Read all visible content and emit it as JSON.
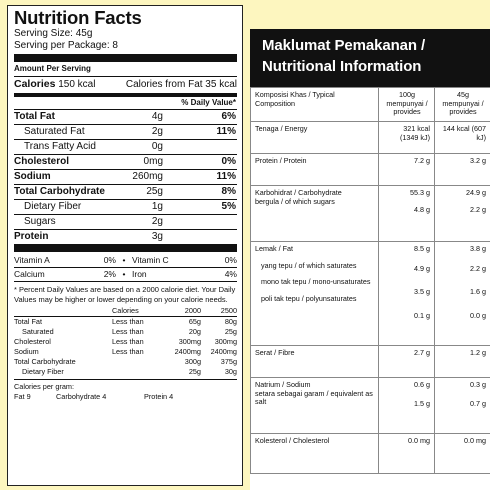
{
  "nutrition_facts": {
    "title": "Nutrition Facts",
    "serving_size": "Serving Size: 45g",
    "servings_per_package": "Serving per Package: 8",
    "amount_per_serving": "Amount Per Serving",
    "calories_label": "Calories",
    "calories_value": "150 kcal",
    "calories_from_fat": "Calories from Fat  35 kcal",
    "daily_value_header": "% Daily Value*",
    "nutrients": [
      {
        "label": "Total Fat",
        "amount": "4g",
        "dv": "6%"
      },
      {
        "label": "Saturated Fat",
        "amount": "2g",
        "dv": "11%"
      },
      {
        "label": "Trans Fatty Acid",
        "amount": "0g",
        "dv": ""
      },
      {
        "label": "Cholesterol",
        "amount": "0mg",
        "dv": "0%"
      },
      {
        "label": "Sodium",
        "amount": "260mg",
        "dv": "11%"
      },
      {
        "label": "Total Carbohydrate",
        "amount": "25g",
        "dv": "8%"
      },
      {
        "label": "Dietary Fiber",
        "amount": "1g",
        "dv": "5%"
      },
      {
        "label": "Sugars",
        "amount": "2g",
        "dv": ""
      },
      {
        "label": "Protein",
        "amount": "3g",
        "dv": ""
      }
    ],
    "vitamins": [
      [
        "Vitamin A",
        "0%",
        "•",
        "Vitamin C",
        "0%"
      ],
      [
        "Calcium",
        "2%",
        "•",
        "Iron",
        "4%"
      ]
    ],
    "footnote": "* Percent Daily Values are based on a 2000 calorie diet. Your Daily Values may be higher or lower depending on your calorie needs.",
    "ref_header": [
      "",
      "Calories",
      "2000",
      "2500"
    ],
    "ref_rows": [
      [
        "Total Fat",
        "Less than",
        "65g",
        "80g"
      ],
      [
        "Saturated",
        "Less than",
        "20g",
        "25g"
      ],
      [
        "Cholesterol",
        "Less than",
        "300mg",
        "300mg"
      ],
      [
        "Sodium",
        "Less than",
        "2400mg",
        "2400mg"
      ],
      [
        "Total Carbohydrate",
        "",
        "300g",
        "375g"
      ],
      [
        "Dietary Fiber",
        "",
        "25g",
        "30g"
      ]
    ],
    "calories_per_gram": "Calories per gram:",
    "cpg_values": [
      "Fat 9",
      "Carbohydrate 4",
      "Protein 4"
    ]
  },
  "maklumat": {
    "title_line1": "Maklumat Pemakanan /",
    "title_line2": "Nutritional Information",
    "col_header": [
      "Komposisi Khas / Typical Composition",
      "100g mempunyai / provides",
      "45g mempunyai / provides"
    ],
    "rows": [
      {
        "label": "Tenaga / Energy",
        "v100": "321 kcal (1349 kJ)",
        "v45": "144 kcal (607 kJ)"
      },
      {
        "label": "Protein / Protein",
        "v100": "7.2 g",
        "v45": "3.2 g"
      },
      {
        "label": "Karbohidrat / Carbohydrate",
        "v100": "55.3 g",
        "v45": "24.9 g"
      },
      {
        "label": "bergula / of which sugars",
        "v100": "4.8 g",
        "v45": "2.2 g"
      },
      {
        "label": "Lemak / Fat",
        "v100": "8.5 g",
        "v45": "3.8 g"
      },
      {
        "label": "yang tepu / of which saturates",
        "v100": "4.9 g",
        "v45": "2.2 g"
      },
      {
        "label": "mono tak tepu / mono-unsaturates",
        "v100": "3.5 g",
        "v45": "1.6 g"
      },
      {
        "label": "poli tak tepu / polyunsaturates",
        "v100": "0.1 g",
        "v45": "0.0 g"
      },
      {
        "label": "Serat / Fibre",
        "v100": "2.7 g",
        "v45": "1.2 g"
      },
      {
        "label": "Natrium / Sodium",
        "v100": "0.6 g",
        "v45": "0.3 g"
      },
      {
        "label": "setara sebagai garam / equivalent as salt",
        "v100": "1.5 g",
        "v45": "0.7 g"
      },
      {
        "label": "Kolesterol / Cholesterol",
        "v100": "0.0 mg",
        "v45": "0.0 mg"
      }
    ]
  }
}
